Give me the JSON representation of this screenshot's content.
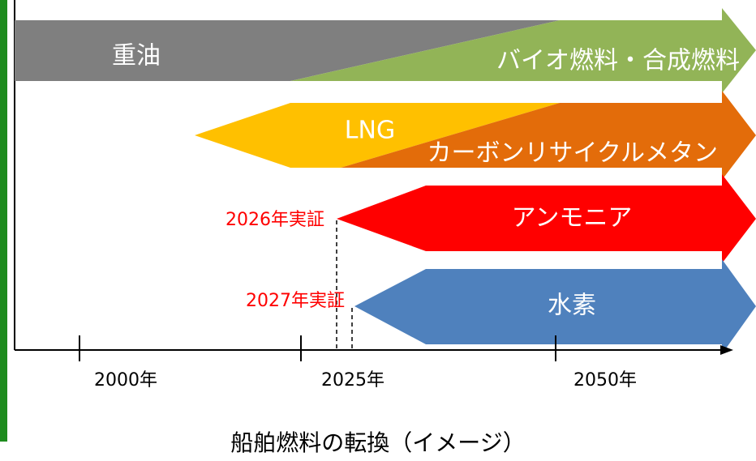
{
  "bands": [
    {
      "label": "重油"
    },
    {
      "label": "バイオ燃料・合成燃料"
    },
    {
      "label": "LNG"
    },
    {
      "label": "カーボンリサイクルメタン"
    },
    {
      "label": "アンモニア"
    },
    {
      "label": "水素"
    }
  ],
  "years": [
    "2000年",
    "2025年",
    "2050年"
  ],
  "notes": [
    "2026年実証",
    "2027年実証"
  ],
  "caption": "船舶燃料の転換（イメージ）"
}
